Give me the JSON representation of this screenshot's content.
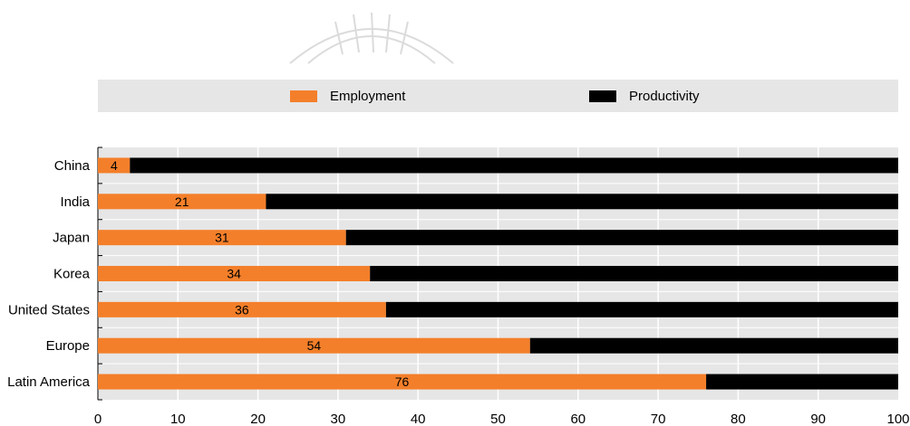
{
  "legend": {
    "employment_label": "Employment",
    "productivity_label": "Productivity"
  },
  "colors": {
    "employment": "#f47f2a",
    "productivity": "#000000",
    "band": "#e6e6e6",
    "grid": "#ffffff"
  },
  "chart_data": {
    "type": "bar",
    "orientation": "horizontal",
    "stacked": true,
    "title": "",
    "xlabel": "",
    "ylabel": "",
    "categories": [
      "China",
      "India",
      "Japan",
      "Korea",
      "United States",
      "Europe",
      "Latin America"
    ],
    "series": [
      {
        "name": "Employment",
        "values": [
          4,
          21,
          31,
          34,
          36,
          54,
          76
        ]
      },
      {
        "name": "Productivity",
        "values": [
          96,
          79,
          69,
          66,
          64,
          46,
          24
        ]
      }
    ],
    "data_labels": [
      "4",
      "21",
      "31",
      "34",
      "36",
      "54",
      "76"
    ],
    "xlim": [
      0,
      100
    ],
    "xticks": [
      0,
      10,
      20,
      30,
      40,
      50,
      60,
      70,
      80,
      90,
      100
    ],
    "grid": true,
    "legend_position": "top"
  }
}
